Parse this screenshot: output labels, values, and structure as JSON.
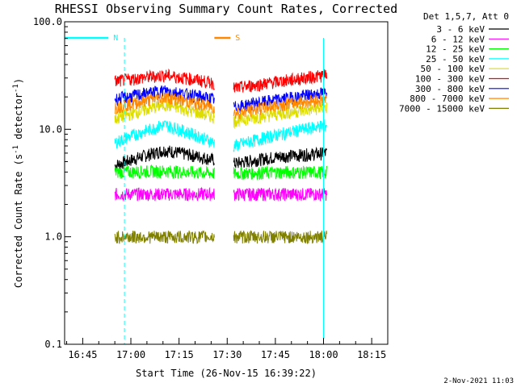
{
  "chart_data": {
    "type": "line",
    "title": "RHESSI Observing Summary Count Rates, Corrected",
    "xlabel": "Start Time (26-Nov-15 16:39:22)",
    "ylabel": "Corrected Count Rate (s",
    "ylabel_sup": "-1",
    "ylabel_tail": " detector",
    "ylabel_sup2": "-1",
    "ylabel_end": ")",
    "yscale": "log",
    "ylim": [
      0.1,
      100
    ],
    "y_ticks": [
      {
        "value": 100,
        "label": "100.0"
      },
      {
        "value": 10,
        "label": "10.0"
      },
      {
        "value": 1,
        "label": "1.0"
      },
      {
        "value": 0.1,
        "label": "0.1"
      }
    ],
    "xlim": [
      "16:39:22",
      "18:20:00"
    ],
    "x_ticks": [
      {
        "value": "16:45",
        "label": "16:45"
      },
      {
        "value": "17:00",
        "label": "17:00"
      },
      {
        "value": "17:15",
        "label": "17:15"
      },
      {
        "value": "17:30",
        "label": "17:30"
      },
      {
        "value": "17:45",
        "label": "17:45"
      },
      {
        "value": "18:00",
        "label": "18:00"
      },
      {
        "value": "18:15",
        "label": "18:15"
      }
    ],
    "legend_header": "Det 1,5,7, Att 0",
    "legend_position": "outside-right",
    "segments": [
      {
        "start": "16:55",
        "end": "17:26"
      },
      {
        "start": "17:32",
        "end": "18:01"
      }
    ],
    "series": [
      {
        "name": "3 - 6 keV",
        "color": "#000000",
        "base": [
          4.6,
          6.4,
          5.2,
          4.8,
          5.6,
          6.0
        ]
      },
      {
        "name": "6 - 12 keV",
        "color": "#ff00ff",
        "base": [
          2.5,
          2.5,
          2.5,
          2.5,
          2.5,
          2.5
        ]
      },
      {
        "name": "12 - 25 keV",
        "color": "#00ff00",
        "base": [
          4.0,
          4.1,
          3.9,
          3.9,
          4.0,
          4.0
        ]
      },
      {
        "name": "25 - 50 keV",
        "color": "#00ffff",
        "base": [
          7.5,
          11.0,
          7.5,
          7.0,
          9.0,
          11.0
        ]
      },
      {
        "name": "50 - 100 keV",
        "color": "#dddd00",
        "base": [
          12.5,
          17.0,
          13.0,
          12.0,
          14.0,
          16.0
        ]
      },
      {
        "name": "100 - 300 keV",
        "color": "#ff0000",
        "base": [
          28.0,
          32.0,
          27.0,
          24.0,
          28.0,
          32.0
        ]
      },
      {
        "name": "300 - 800 keV",
        "color": "#0000ff",
        "base": [
          19.0,
          23.0,
          19.0,
          16.0,
          19.0,
          22.0
        ]
      },
      {
        "name": "800 - 7000 keV",
        "color": "#ff8800",
        "base": [
          16.0,
          20.0,
          16.0,
          14.0,
          17.0,
          19.0
        ]
      },
      {
        "name": "7000 - 15000 keV",
        "color": "#808000",
        "base": [
          1.0,
          1.0,
          1.0,
          1.0,
          1.0,
          1.0
        ]
      }
    ],
    "flags": [
      {
        "label": "N",
        "color": "#00ffff",
        "bar_start": "16:39:22",
        "bar_end": "16:53",
        "dash": "16:58",
        "solid_end": "18:00"
      },
      {
        "label": "S",
        "color": "#ff8800",
        "bar_start": "17:26",
        "bar_end": "17:31"
      }
    ]
  },
  "footer": {
    "date": "2-Nov-2021 11:03"
  }
}
